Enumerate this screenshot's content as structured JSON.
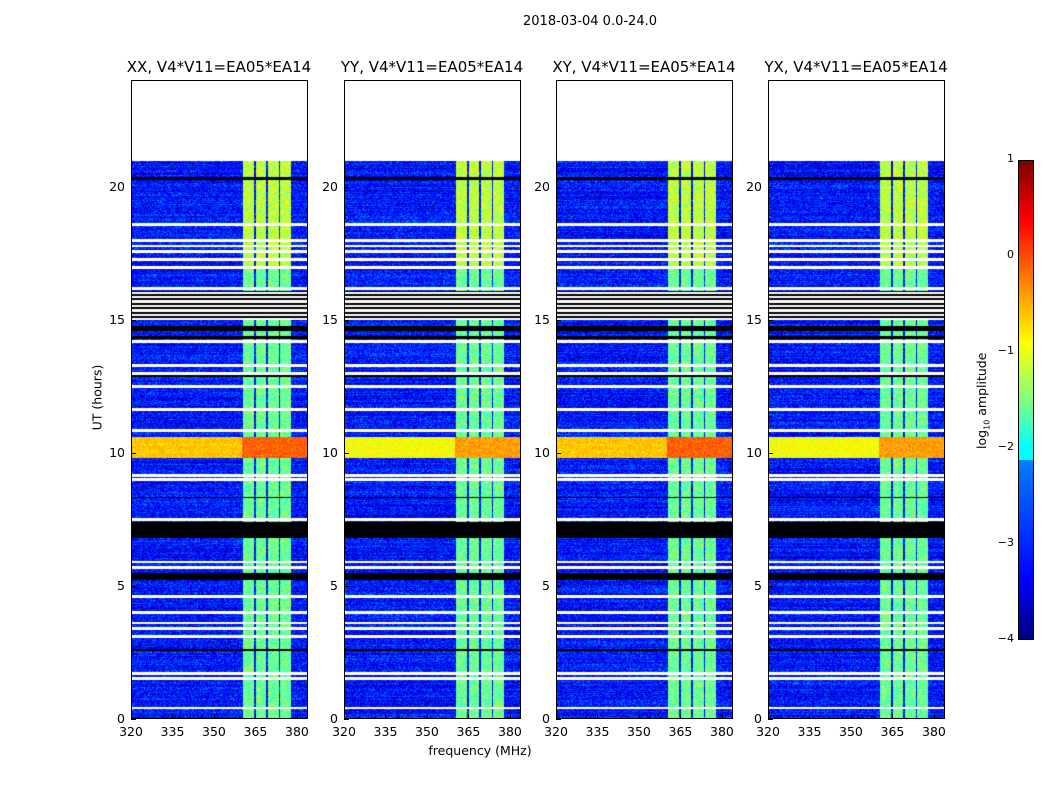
{
  "title": "2018-03-04 0.0-24.0",
  "chart_data": {
    "type": "heatmap",
    "title": "2018-03-04 0.0-24.0",
    "xlabel": "frequency (MHz)",
    "ylabel": "UT (hours)",
    "xlim": [
      320,
      384
    ],
    "ylim": [
      0,
      24
    ],
    "xticks": [
      "320",
      "335",
      "350",
      "365",
      "380"
    ],
    "xtick_values": [
      320,
      335,
      350,
      365,
      380
    ],
    "yticks": [
      "0",
      "5",
      "10",
      "15",
      "20"
    ],
    "ytick_values": [
      0,
      5,
      10,
      15,
      20
    ],
    "panels": [
      {
        "title": "XX, V4*V11=EA05*EA14",
        "seed": 1
      },
      {
        "title": "YY, V4*V11=EA05*EA14",
        "seed": 2
      },
      {
        "title": "XY, V4*V11=EA05*EA14",
        "seed": 3
      },
      {
        "title": "YX, V4*V11=EA05*EA14",
        "seed": 4
      }
    ],
    "data_end_hour": 21.0,
    "background_log_amp": -3.3,
    "rfi_channels_mhz": [
      [
        360.5,
        364.5
      ],
      [
        365,
        369
      ],
      [
        369.5,
        373.5
      ],
      [
        374,
        378
      ]
    ],
    "rfi_log_amp": -1.6,
    "broadband_rfi_hours": [
      9.8,
      10.6
    ],
    "broadband_log_amp": -0.6,
    "flag_white_hours": [
      0.4,
      1.5,
      1.7,
      3.1,
      3.4,
      3.6,
      4.0,
      4.6,
      5.7,
      5.9,
      7.5,
      9.0,
      9.15,
      10.85,
      11.65,
      12.5,
      13.0,
      13.3,
      14.2,
      16.2,
      17.0,
      17.3,
      17.6,
      17.8,
      18.0,
      18.6
    ],
    "flag_black_hours": [
      [
        5.2,
        5.5
      ],
      [
        6.8,
        7.4
      ],
      [
        2.55,
        2.6
      ],
      [
        20.3,
        20.4
      ],
      [
        15.0,
        16.1
      ],
      [
        14.6,
        14.8
      ],
      [
        14.3,
        14.4
      ],
      [
        8.3,
        8.35
      ],
      [
        12.85,
        12.95
      ]
    ],
    "colorbar": {
      "label": "log10 amplitude",
      "ticks": [
        "1",
        "0",
        "−1",
        "−2",
        "−3",
        "−4"
      ],
      "range": [
        -4,
        1
      ]
    }
  }
}
